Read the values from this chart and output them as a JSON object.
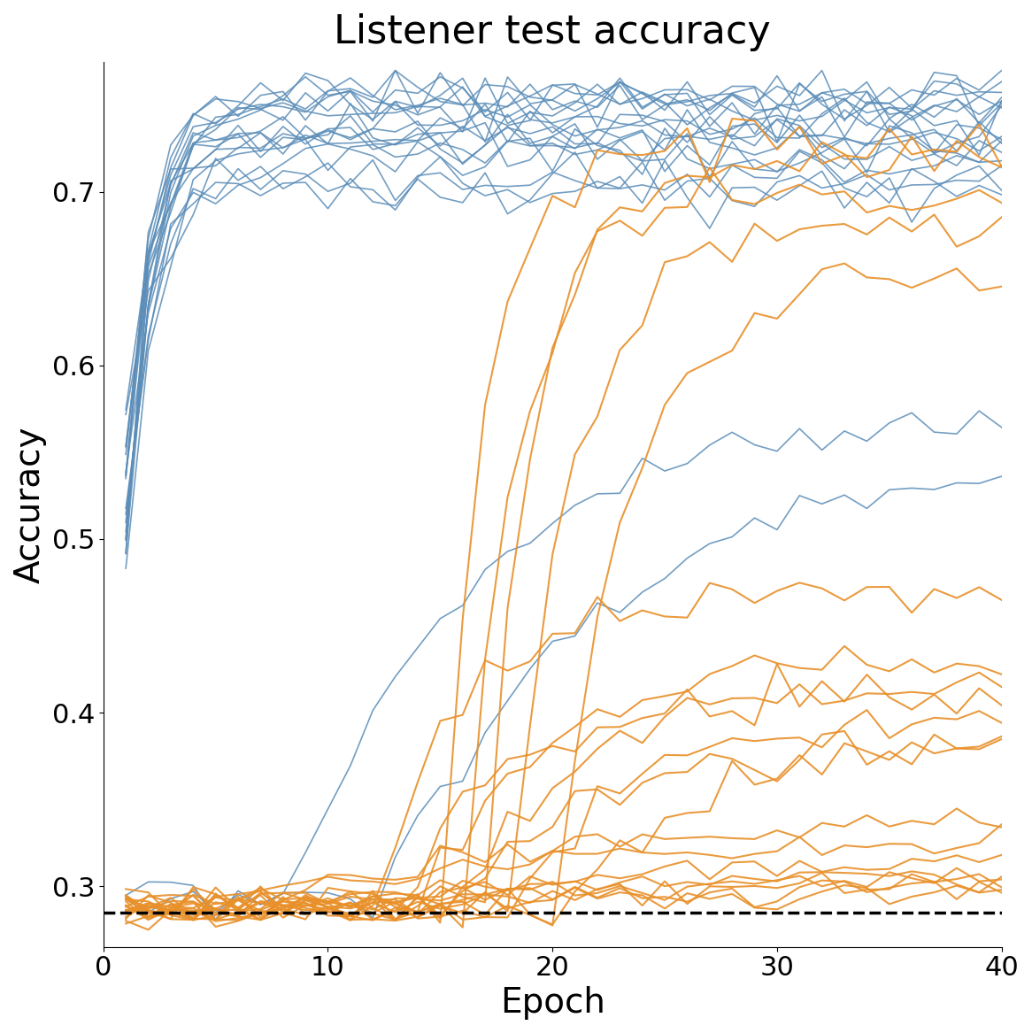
{
  "title": "Listener test accuracy",
  "xlabel": "Epoch",
  "ylabel": "Accuracy",
  "xlim": [
    0,
    40
  ],
  "ylim": [
    0.265,
    0.775
  ],
  "chance_level": 0.285,
  "blue_color": "#5b8db8",
  "orange_color": "#e8902a",
  "title_fontsize": 32,
  "label_fontsize": 28,
  "tick_fontsize": 22,
  "n_epochs": 40,
  "blue_fast_n": 18,
  "blue_slow_n": 2,
  "orange_n": 20
}
